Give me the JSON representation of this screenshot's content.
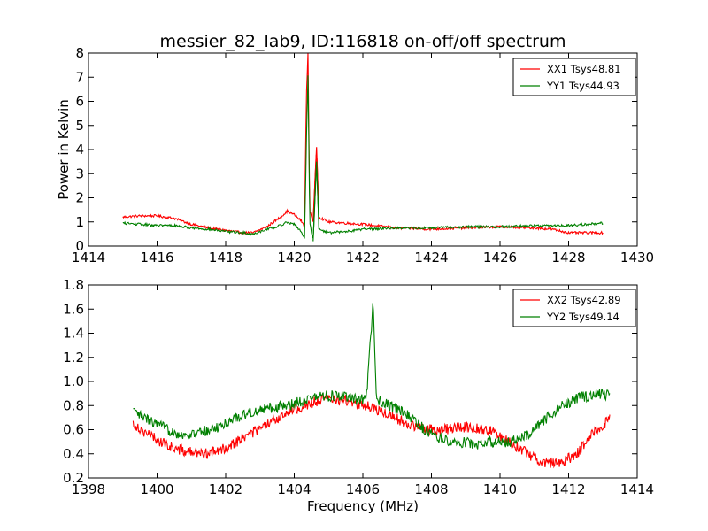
{
  "chart_data": [
    {
      "type": "line",
      "title": "messier_82_lab9, ID:116818 on-off/off spectrum",
      "xlabel": "",
      "ylabel": "Power in Kelvin",
      "xlim": [
        1414,
        1430
      ],
      "ylim": [
        0,
        8
      ],
      "xticks": [
        "1414",
        "1416",
        "1418",
        "1420",
        "1422",
        "1424",
        "1426",
        "1428",
        "1430"
      ],
      "yticks": [
        "0",
        "1",
        "2",
        "3",
        "4",
        "5",
        "6",
        "7",
        "8"
      ],
      "legend": "top-right",
      "series": [
        {
          "name": "XX1 Tsys48.81",
          "color": "#ff0000",
          "points": [
            [
              1415.0,
              1.2
            ],
            [
              1415.5,
              1.25
            ],
            [
              1416.0,
              1.25
            ],
            [
              1416.5,
              1.15
            ],
            [
              1417.0,
              0.9
            ],
            [
              1417.5,
              0.75
            ],
            [
              1418.0,
              0.65
            ],
            [
              1418.5,
              0.55
            ],
            [
              1418.8,
              0.55
            ],
            [
              1419.2,
              0.8
            ],
            [
              1419.6,
              1.2
            ],
            [
              1419.8,
              1.45
            ],
            [
              1420.0,
              1.3
            ],
            [
              1420.2,
              1.05
            ],
            [
              1420.3,
              0.8
            ],
            [
              1420.35,
              6.0
            ],
            [
              1420.4,
              8.0
            ],
            [
              1420.45,
              1.5
            ],
            [
              1420.55,
              1.0
            ],
            [
              1420.65,
              4.1
            ],
            [
              1420.72,
              1.2
            ],
            [
              1421.0,
              1.0
            ],
            [
              1421.5,
              0.95
            ],
            [
              1422.0,
              0.9
            ],
            [
              1423.0,
              0.75
            ],
            [
              1424.0,
              0.7
            ],
            [
              1425.0,
              0.75
            ],
            [
              1426.0,
              0.8
            ],
            [
              1427.0,
              0.75
            ],
            [
              1427.5,
              0.7
            ],
            [
              1428.0,
              0.55
            ],
            [
              1429.0,
              0.55
            ]
          ]
        },
        {
          "name": "YY1 Tsys44.93",
          "color": "#008000",
          "points": [
            [
              1415.0,
              0.95
            ],
            [
              1415.5,
              0.9
            ],
            [
              1416.0,
              0.85
            ],
            [
              1416.5,
              0.85
            ],
            [
              1417.0,
              0.75
            ],
            [
              1417.5,
              0.7
            ],
            [
              1418.0,
              0.6
            ],
            [
              1418.5,
              0.55
            ],
            [
              1418.8,
              0.5
            ],
            [
              1419.2,
              0.7
            ],
            [
              1419.6,
              0.85
            ],
            [
              1419.8,
              1.0
            ],
            [
              1420.0,
              0.9
            ],
            [
              1420.2,
              0.6
            ],
            [
              1420.3,
              0.35
            ],
            [
              1420.35,
              4.0
            ],
            [
              1420.4,
              7.1
            ],
            [
              1420.45,
              1.0
            ],
            [
              1420.55,
              0.2
            ],
            [
              1420.65,
              3.5
            ],
            [
              1420.72,
              0.7
            ],
            [
              1421.0,
              0.55
            ],
            [
              1421.5,
              0.6
            ],
            [
              1422.0,
              0.7
            ],
            [
              1423.0,
              0.75
            ],
            [
              1424.0,
              0.75
            ],
            [
              1425.0,
              0.8
            ],
            [
              1426.0,
              0.8
            ],
            [
              1427.0,
              0.85
            ],
            [
              1427.5,
              0.85
            ],
            [
              1428.0,
              0.85
            ],
            [
              1429.0,
              0.95
            ]
          ]
        }
      ]
    },
    {
      "type": "line",
      "title": "",
      "xlabel": "Frequency (MHz)",
      "ylabel": "",
      "xlim": [
        1398,
        1414
      ],
      "ylim": [
        0.2,
        1.8
      ],
      "xticks": [
        "1398",
        "1400",
        "1402",
        "1404",
        "1406",
        "1408",
        "1410",
        "1412",
        "1414"
      ],
      "yticks": [
        "0.2",
        "0.4",
        "0.6",
        "0.8",
        "1.0",
        "1.2",
        "1.4",
        "1.6",
        "1.8"
      ],
      "legend": "top-right",
      "series": [
        {
          "name": "XX2 Tsys42.89",
          "color": "#ff0000",
          "points": [
            [
              1399.3,
              0.65
            ],
            [
              1399.8,
              0.55
            ],
            [
              1400.3,
              0.47
            ],
            [
              1400.8,
              0.42
            ],
            [
              1401.3,
              0.4
            ],
            [
              1401.8,
              0.42
            ],
            [
              1402.3,
              0.5
            ],
            [
              1402.8,
              0.58
            ],
            [
              1403.3,
              0.65
            ],
            [
              1403.8,
              0.75
            ],
            [
              1404.3,
              0.8
            ],
            [
              1404.8,
              0.85
            ],
            [
              1405.3,
              0.85
            ],
            [
              1405.8,
              0.82
            ],
            [
              1406.3,
              0.78
            ],
            [
              1406.8,
              0.72
            ],
            [
              1407.3,
              0.65
            ],
            [
              1407.8,
              0.6
            ],
            [
              1408.3,
              0.6
            ],
            [
              1408.8,
              0.62
            ],
            [
              1409.3,
              0.62
            ],
            [
              1409.8,
              0.58
            ],
            [
              1410.3,
              0.5
            ],
            [
              1410.8,
              0.4
            ],
            [
              1411.3,
              0.33
            ],
            [
              1411.8,
              0.32
            ],
            [
              1412.3,
              0.42
            ],
            [
              1412.8,
              0.6
            ],
            [
              1413.2,
              0.68
            ]
          ]
        },
        {
          "name": "YY2 Tsys49.14",
          "color": "#008000",
          "points": [
            [
              1399.3,
              0.75
            ],
            [
              1399.8,
              0.67
            ],
            [
              1400.3,
              0.6
            ],
            [
              1400.8,
              0.55
            ],
            [
              1401.3,
              0.58
            ],
            [
              1401.8,
              0.62
            ],
            [
              1402.3,
              0.7
            ],
            [
              1402.8,
              0.75
            ],
            [
              1403.3,
              0.78
            ],
            [
              1403.8,
              0.8
            ],
            [
              1404.3,
              0.85
            ],
            [
              1404.8,
              0.88
            ],
            [
              1405.3,
              0.88
            ],
            [
              1405.8,
              0.85
            ],
            [
              1406.1,
              0.85
            ],
            [
              1406.3,
              1.65
            ],
            [
              1406.4,
              0.85
            ],
            [
              1406.8,
              0.8
            ],
            [
              1407.3,
              0.72
            ],
            [
              1407.8,
              0.6
            ],
            [
              1408.3,
              0.52
            ],
            [
              1408.8,
              0.5
            ],
            [
              1409.3,
              0.48
            ],
            [
              1409.8,
              0.5
            ],
            [
              1410.3,
              0.5
            ],
            [
              1410.8,
              0.55
            ],
            [
              1411.3,
              0.68
            ],
            [
              1411.8,
              0.8
            ],
            [
              1412.3,
              0.86
            ],
            [
              1412.8,
              0.9
            ],
            [
              1413.2,
              0.88
            ]
          ]
        }
      ]
    }
  ]
}
